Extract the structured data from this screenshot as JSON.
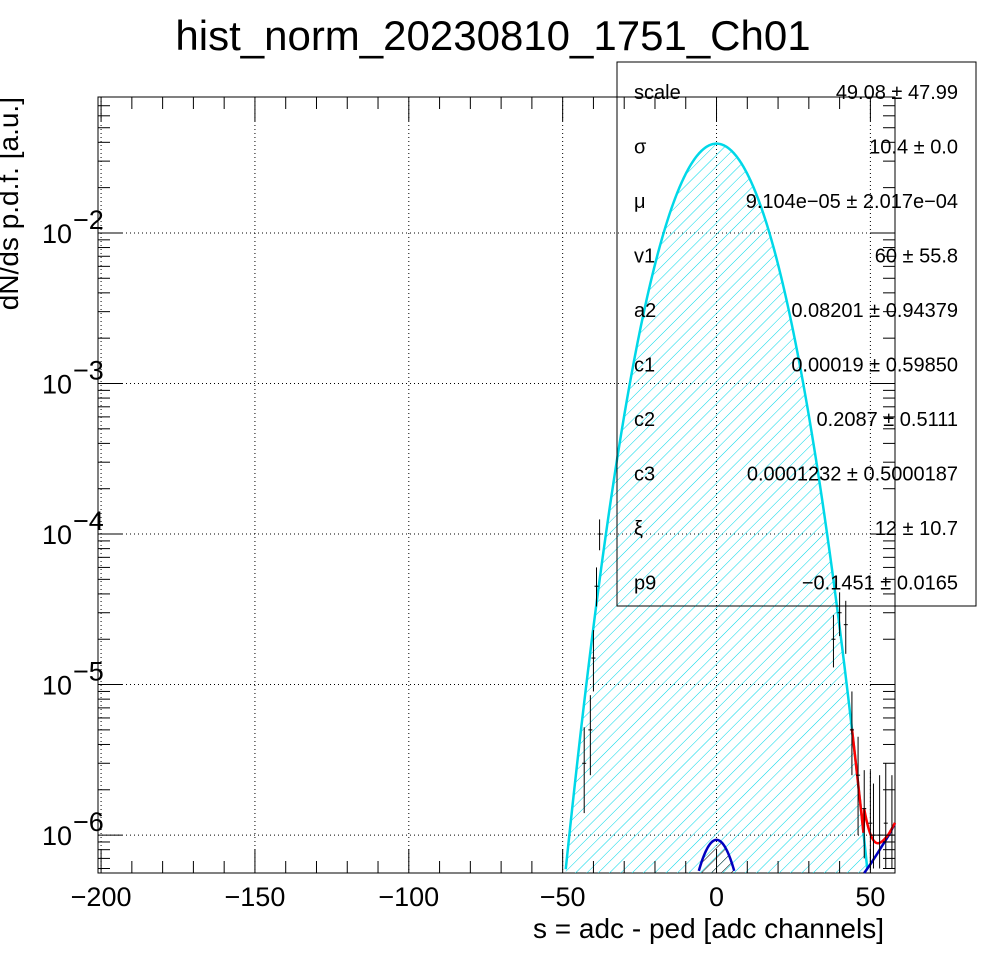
{
  "chart_data": {
    "type": "line",
    "title": "hist_norm_20230810_1751_Ch01",
    "xlabel": "s = adc - ped [adc channels]",
    "ylabel": "dN/ds p.d.f. [a.u.]",
    "xlim": [
      -201,
      58
    ],
    "ylim": [
      5.6e-07,
      0.08
    ],
    "yscale": "log",
    "grid": true,
    "x_ticks": [
      -200,
      -150,
      -100,
      -50,
      0,
      50
    ],
    "x_tick_labels": [
      "−200",
      "−150",
      "−100",
      "−50",
      "0",
      "50"
    ],
    "y_ticks": [
      {
        "value": 1e-06,
        "base": "10",
        "exp": "−6"
      },
      {
        "value": 1e-05,
        "base": "10",
        "exp": "−5"
      },
      {
        "value": 0.0001,
        "base": "10",
        "exp": "−4"
      },
      {
        "value": 0.001,
        "base": "10",
        "exp": "−3"
      },
      {
        "value": 0.01,
        "base": "10",
        "exp": "−2"
      }
    ],
    "colors": {
      "total_fit": "#ff0000",
      "gaussian_component": "#00d8e8",
      "secondary_component": "#0000c0",
      "data": "#000000"
    },
    "gaussian_component": {
      "amplitude": 0.0392,
      "mean": 0.0,
      "sigma": 10.4
    },
    "secondary_component": {
      "amplitude": 9.3e-07,
      "mean": 0.0,
      "sigma": 5.9
    },
    "tail_component": {
      "x": [
        48,
        50,
        52,
        54,
        56,
        58
      ],
      "y": [
        5.6e-07,
        6.4e-07,
        7.4e-07,
        8.6e-07,
        1e-06,
        1.2e-06
      ]
    },
    "data_points": [
      {
        "x": -43,
        "y": 3e-06,
        "yerr_lo": 1.6e-06,
        "yerr_hi": 2.2e-06
      },
      {
        "x": -41,
        "y": 5e-06,
        "yerr_lo": 2.5e-06,
        "yerr_hi": 3.5e-06
      },
      {
        "x": -40,
        "y": 1.5e-05,
        "yerr_lo": 6e-06,
        "yerr_hi": 8e-06
      },
      {
        "x": -39,
        "y": 4.5e-05,
        "yerr_lo": 1.2e-05,
        "yerr_hi": 1.5e-05
      },
      {
        "x": -38,
        "y": 0.0001,
        "yerr_lo": 2.2e-05,
        "yerr_hi": 2.5e-05
      },
      {
        "x": 38,
        "y": 2e-05,
        "yerr_lo": 7e-06,
        "yerr_hi": 9e-06
      },
      {
        "x": 40,
        "y": 3e-05,
        "yerr_lo": 9e-06,
        "yerr_hi": 1.1e-05
      },
      {
        "x": 42,
        "y": 2.5e-05,
        "yerr_lo": 9e-06,
        "yerr_hi": 1.1e-05
      },
      {
        "x": 44,
        "y": 5e-06,
        "yerr_lo": 2.5e-06,
        "yerr_hi": 4e-06
      },
      {
        "x": 46,
        "y": 2.5e-06,
        "yerr_lo": 1.5e-06,
        "yerr_hi": 2e-06
      },
      {
        "x": 48,
        "y": 1.5e-06,
        "yerr_lo": 8e-07,
        "yerr_hi": 1.2e-06
      },
      {
        "x": 50,
        "y": 1.2e-06,
        "yerr_lo": 6e-07,
        "yerr_hi": 1.5e-06
      },
      {
        "x": 51,
        "y": 1e-06,
        "yerr_lo": 4e-07,
        "yerr_hi": 1.2e-06
      },
      {
        "x": 53,
        "y": 1e-06,
        "yerr_lo": 4e-07,
        "yerr_hi": 1.5e-06
      },
      {
        "x": 55,
        "y": 1.2e-06,
        "yerr_lo": 6e-07,
        "yerr_hi": 1.8e-06
      },
      {
        "x": 57,
        "y": 1e-06,
        "yerr_lo": 4e-07,
        "yerr_hi": 1.5e-06
      }
    ],
    "stats_box": {
      "rows": [
        {
          "name": "scale",
          "value": "49.08 ± 47.99"
        },
        {
          "name": "σ",
          "value": "10.4 ± 0.0"
        },
        {
          "name": "μ",
          "value": "9.104e−05 ± 2.017e−04"
        },
        {
          "name": "v1",
          "value": "60 ± 55.8"
        },
        {
          "name": "a2",
          "value": "0.08201 ± 0.94379"
        },
        {
          "name": "c1",
          "value": "0.00019 ± 0.59850"
        },
        {
          "name": "c2",
          "value": "0.2087 ± 0.5111"
        },
        {
          "name": "c3",
          "value": "0.0001232 ± 0.5000187"
        },
        {
          "name": "ξ",
          "value": "12 ± 10.7"
        },
        {
          "name": "p9",
          "value": "−0.1451 ± 0.0165"
        }
      ]
    }
  }
}
